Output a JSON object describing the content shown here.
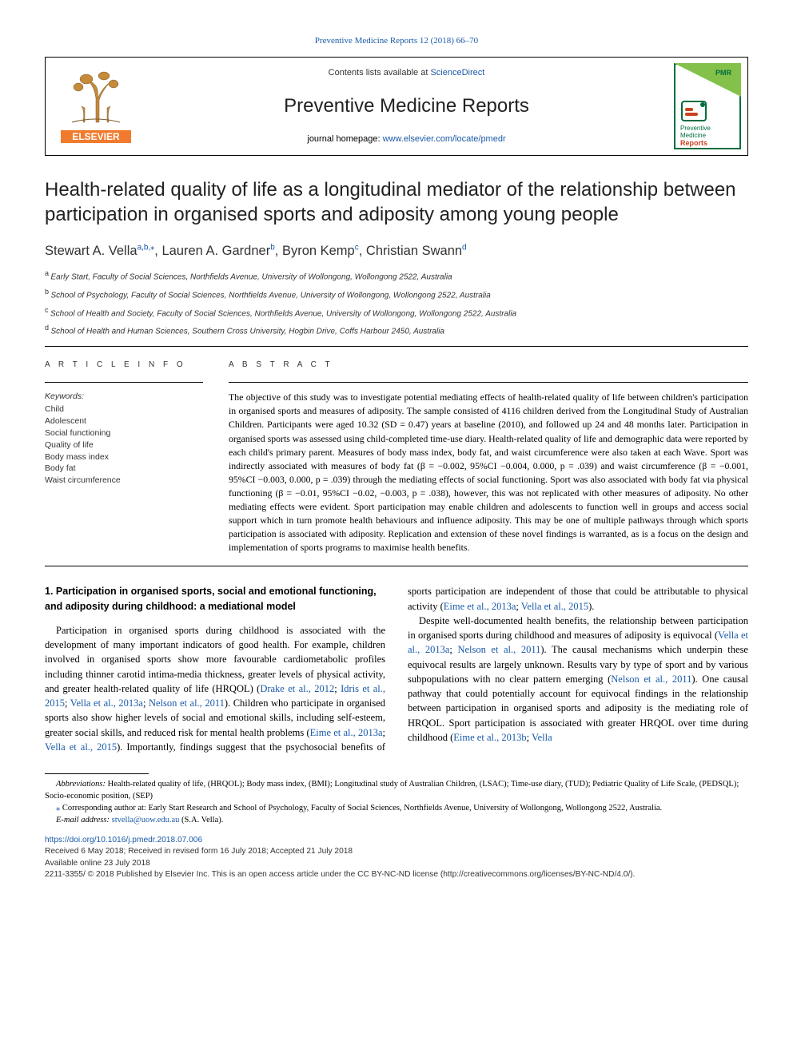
{
  "top_link": {
    "journal": "Preventive Medicine Reports",
    "citation": "12 (2018) 66–70"
  },
  "header": {
    "contents_prefix": "Contents lists available at ",
    "contents_link": "ScienceDirect",
    "journal_name": "Preventive Medicine Reports",
    "homepage_prefix": "journal homepage: ",
    "homepage_url": "www.elsevier.com/locate/pmedr",
    "cover": {
      "border": "#006d3e",
      "triangle": "#84c14b",
      "bg": "#ffffff",
      "text1": "Preventive",
      "text2": "Medicine",
      "text3": "Reports",
      "icon_accent": "#c9421f"
    },
    "elsevier": {
      "tree_color": "#c58a3a",
      "band_bg": "#f07b2e",
      "band_text": "ELSEVIER"
    }
  },
  "title": "Health-related quality of life as a longitudinal mediator of the relationship between participation in organised sports and adiposity among young people",
  "authors": [
    {
      "name": "Stewart A. Vella",
      "sup": "a,b,",
      "corr": true
    },
    {
      "name": "Lauren A. Gardner",
      "sup": "b"
    },
    {
      "name": "Byron Kemp",
      "sup": "c"
    },
    {
      "name": "Christian Swann",
      "sup": "d"
    }
  ],
  "affiliations": [
    {
      "sup": "a",
      "text": "Early Start, Faculty of Social Sciences, Northfields Avenue, University of Wollongong, Wollongong 2522, Australia"
    },
    {
      "sup": "b",
      "text": "School of Psychology, Faculty of Social Sciences, Northfields Avenue, University of Wollongong, Wollongong 2522, Australia"
    },
    {
      "sup": "c",
      "text": "School of Health and Society, Faculty of Social Sciences, Northfields Avenue, University of Wollongong, Wollongong 2522, Australia"
    },
    {
      "sup": "d",
      "text": "School of Health and Human Sciences, Southern Cross University, Hogbin Drive, Coffs Harbour 2450, Australia"
    }
  ],
  "article_info_label": "A R T I C L E  I N F O",
  "abstract_label": "A B S T R A C T",
  "keywords_head": "Keywords:",
  "keywords": [
    "Child",
    "Adolescent",
    "Social functioning",
    "Quality of life",
    "Body mass index",
    "Body fat",
    "Waist circumference"
  ],
  "abstract": "The objective of this study was to investigate potential mediating effects of health-related quality of life between children's participation in organised sports and measures of adiposity. The sample consisted of 4116 children derived from the Longitudinal Study of Australian Children. Participants were aged 10.32 (SD = 0.47) years at baseline (2010), and followed up 24 and 48 months later. Participation in organised sports was assessed using child-completed time-use diary. Health-related quality of life and demographic data were reported by each child's primary parent. Measures of body mass index, body fat, and waist circumference were also taken at each Wave. Sport was indirectly associated with measures of body fat (β = −0.002, 95%CI −0.004, 0.000, p = .039) and waist circumference (β = −0.001, 95%CI −0.003, 0.000, p = .039) through the mediating effects of social functioning. Sport was also associated with body fat via physical functioning (β = −0.01, 95%CI −0.02, −0.003, p = .038), however, this was not replicated with other measures of adiposity. No other mediating effects were evident. Sport participation may enable children and adolescents to function well in groups and access social support which in turn promote health behaviours and influence adiposity. This may be one of multiple pathways through which sports participation is associated with adiposity. Replication and extension of these novel findings is warranted, as is a focus on the design and implementation of sports programs to maximise health benefits.",
  "body": {
    "heading": "1. Participation in organised sports, social and emotional functioning, and adiposity during childhood: a mediational model",
    "p1_a": "Participation in organised sports during childhood is associated with the development of many important indicators of good health. For example, children involved in organised sports show more favourable cardiometabolic profiles including thinner carotid intima-media thickness, greater levels of physical activity, and greater health-related quality of life (HRQOL) (",
    "p1_links": [
      "Drake et al., 2012",
      "Idris et al., 2015",
      "Vella et al., 2013a",
      "Nelson et al., 2011"
    ],
    "p1_b": "). Children who participate in organised sports also show higher levels of social and emotional skills, including self-esteem, greater social skills, and reduced risk for mental health problems (",
    "p1_links2": [
      "Eime et al., 2013a",
      "Vella et al., 2015"
    ],
    "p1_c": "). Importantly, ",
    "p2_a": "findings suggest that the psychosocial benefits of sports participation are independent of those that could be attributable to physical activity (",
    "p2_links": [
      "Eime et al., 2013a",
      "Vella et al., 2015"
    ],
    "p2_b": ").",
    "p3_a": "Despite well-documented health benefits, the relationship between participation in organised sports during childhood and measures of adiposity is equivocal (",
    "p3_links": [
      "Vella et al., 2013a",
      "Nelson et al., 2011"
    ],
    "p3_b": "). The causal mechanisms which underpin these equivocal results are largely unknown. Results vary by type of sport and by various subpopulations with no clear pattern emerging (",
    "p3_links2": [
      "Nelson et al., 2011"
    ],
    "p3_c": "). One causal pathway that could potentially account for equivocal findings in the relationship between participation in organised sports and adiposity is the mediating role of HRQOL. Sport participation is associated with greater HRQOL over time during childhood (",
    "p3_links3": [
      "Eime et al., 2013b",
      "Vella"
    ]
  },
  "footnotes": {
    "abbr_label": "Abbreviations:",
    "abbr_text": " Health-related quality of life, (HRQOL); Body mass index, (BMI); Longitudinal study of Australian Children, (LSAC); Time-use diary, (TUD); Pediatric Quality of Life Scale, (PEDSQL); Socio-economic position, (SEP)",
    "corr_text": "Corresponding author at: Early Start Research and School of Psychology, Faculty of Social Sciences, Northfields Avenue, University of Wollongong, Wollongong 2522, Australia.",
    "email_label": "E-mail address: ",
    "email": "stvella@uow.edu.au",
    "email_suffix": " (S.A. Vella)."
  },
  "doi": {
    "url": "https://doi.org/10.1016/j.pmedr.2018.07.006",
    "received": "Received 6 May 2018; Received in revised form 16 July 2018; Accepted 21 July 2018",
    "available": "Available online 23 July 2018",
    "copyright": "2211-3355/ © 2018 Published by Elsevier Inc. This is an open access article under the CC BY-NC-ND license (http://creativecommons.org/licenses/BY-NC-ND/4.0/)."
  },
  "colors": {
    "link": "#1a5aa8",
    "text": "#000000",
    "label": "#333333"
  }
}
